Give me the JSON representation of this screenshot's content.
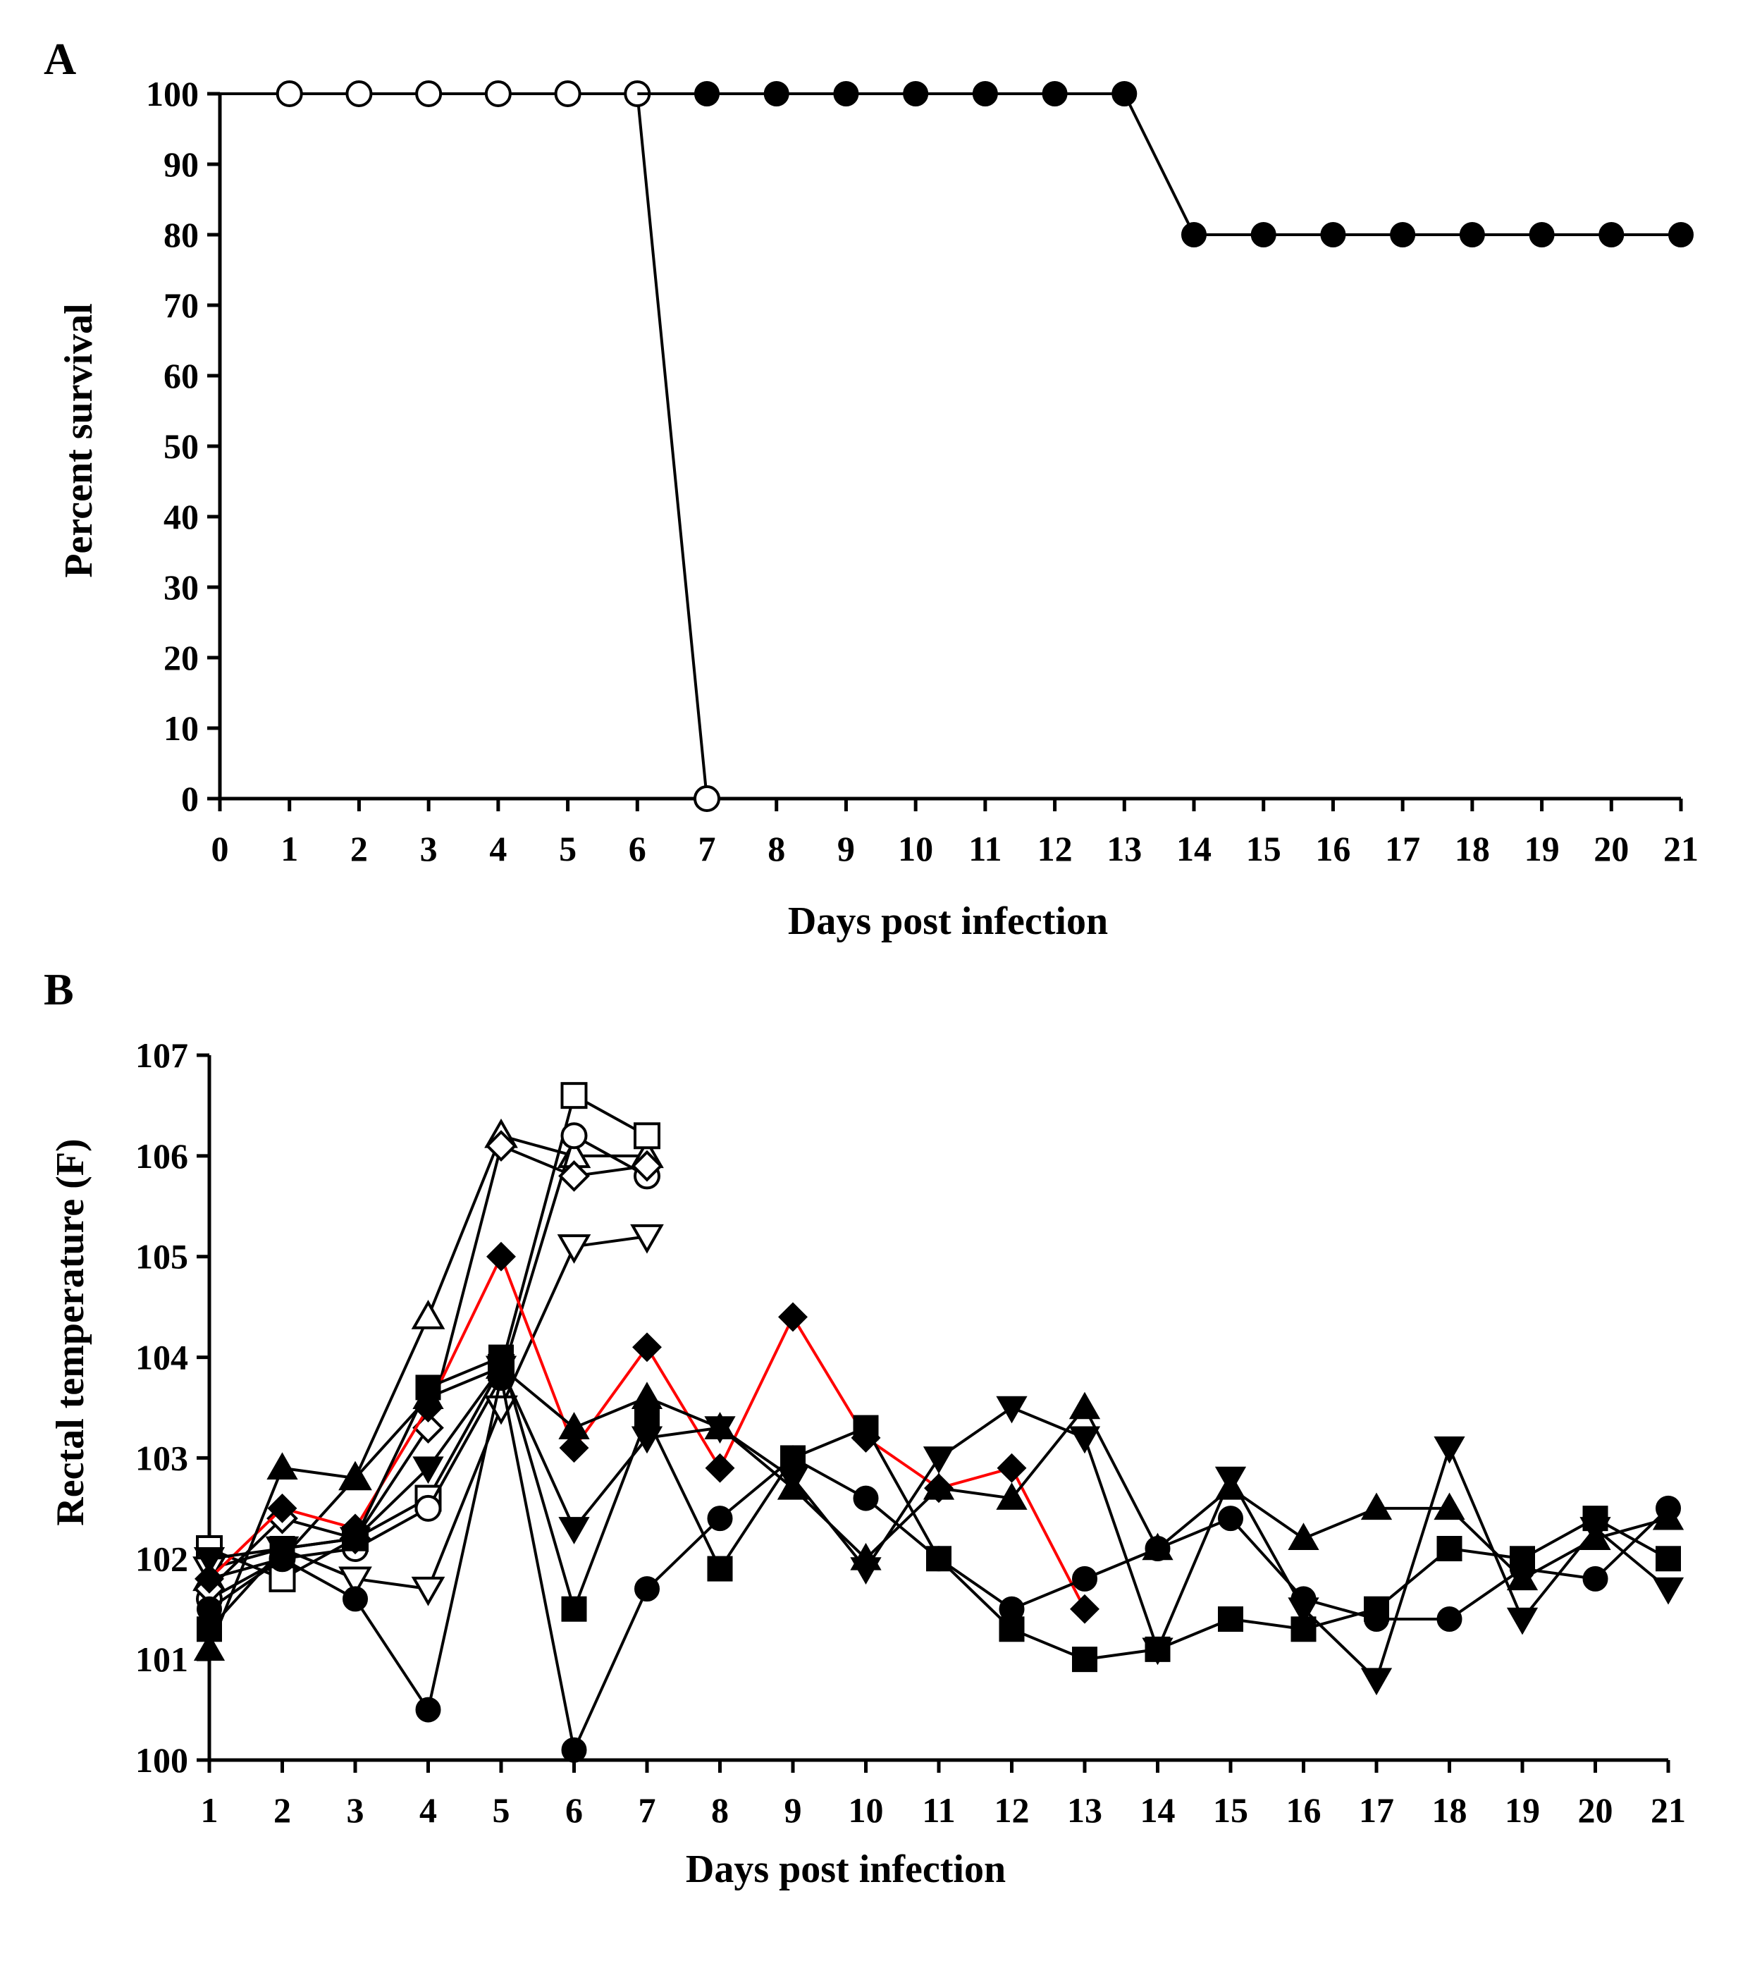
{
  "colors": {
    "ink": "#000000",
    "paper": "#ffffff",
    "highlight": "#ff0000"
  },
  "chart_data": [
    {
      "panel_label": "A",
      "type": "line",
      "title": "",
      "xlabel": "Days post infection",
      "ylabel": "Percent survival",
      "xlim": [
        0,
        21
      ],
      "ylim": [
        0,
        100
      ],
      "xticks": [
        0,
        1,
        2,
        3,
        4,
        5,
        6,
        7,
        8,
        9,
        10,
        11,
        12,
        13,
        14,
        15,
        16,
        17,
        18,
        19,
        20,
        21
      ],
      "yticks": [
        0,
        10,
        20,
        30,
        40,
        50,
        60,
        70,
        80,
        90,
        100
      ],
      "series": [
        {
          "name": "open circles",
          "marker": "circle-open",
          "color": "#000000",
          "step": true,
          "start": [
            0,
            100
          ],
          "x": [
            1,
            2,
            3,
            4,
            5,
            6,
            7
          ],
          "y": [
            100,
            100,
            100,
            100,
            100,
            100,
            0
          ]
        },
        {
          "name": "filled circles",
          "marker": "circle",
          "color": "#000000",
          "step": true,
          "start": [
            6,
            100
          ],
          "x": [
            7,
            8,
            9,
            10,
            11,
            12,
            13,
            14,
            15,
            16,
            17,
            18,
            19,
            20,
            21
          ],
          "y": [
            100,
            100,
            100,
            100,
            100,
            100,
            100,
            80,
            80,
            80,
            80,
            80,
            80,
            80,
            80
          ]
        }
      ]
    },
    {
      "panel_label": "B",
      "type": "line",
      "title": "",
      "xlabel": "Days post infection",
      "ylabel": "Rectal temperature (F)",
      "xlim": [
        1,
        21
      ],
      "ylim": [
        100,
        107
      ],
      "xticks": [
        1,
        2,
        3,
        4,
        5,
        6,
        7,
        8,
        9,
        10,
        11,
        12,
        13,
        14,
        15,
        16,
        17,
        18,
        19,
        20,
        21
      ],
      "yticks": [
        100,
        101,
        102,
        103,
        104,
        105,
        106,
        107
      ],
      "series": [
        {
          "name": "open triangle",
          "marker": "triangle-up-open",
          "color": "#000000",
          "x": [
            1,
            2,
            3,
            4,
            5,
            6,
            7
          ],
          "y": [
            101.8,
            102.0,
            102.8,
            104.4,
            106.2,
            106.0,
            106.0
          ]
        },
        {
          "name": "open square",
          "marker": "square-open",
          "color": "#000000",
          "x": [
            1,
            2,
            3,
            4,
            5,
            6,
            7
          ],
          "y": [
            102.1,
            101.8,
            102.2,
            102.6,
            103.9,
            106.6,
            106.2
          ]
        },
        {
          "name": "open circle",
          "marker": "circle-open",
          "color": "#000000",
          "x": [
            1,
            2,
            3,
            4,
            5,
            6,
            7
          ],
          "y": [
            101.6,
            102.0,
            102.1,
            102.5,
            103.8,
            106.2,
            105.8
          ]
        },
        {
          "name": "open diamond",
          "marker": "diamond-open",
          "color": "#000000",
          "x": [
            1,
            2,
            3,
            4,
            5,
            6,
            7
          ],
          "y": [
            101.7,
            102.4,
            102.2,
            103.3,
            106.1,
            105.8,
            105.9
          ]
        },
        {
          "name": "open inverted triangle",
          "marker": "triangle-down-open",
          "color": "#000000",
          "x": [
            1,
            2,
            3,
            4,
            5,
            6,
            7
          ],
          "y": [
            101.9,
            102.1,
            101.8,
            101.7,
            103.5,
            105.1,
            105.2
          ]
        },
        {
          "name": "filled diamond (red)",
          "marker": "diamond",
          "color": "#ff0000",
          "x": [
            1,
            2,
            3,
            4,
            5,
            6,
            7,
            8,
            9,
            10,
            11,
            12,
            13
          ],
          "y": [
            101.8,
            102.5,
            102.3,
            103.5,
            105.0,
            103.1,
            104.1,
            102.9,
            104.4,
            103.2,
            102.7,
            102.9,
            101.5
          ]
        },
        {
          "name": "filled triangle",
          "marker": "triangle-up",
          "color": "#000000",
          "x": [
            1,
            2,
            3,
            4,
            5,
            6,
            7,
            8,
            9,
            10,
            11,
            12,
            13,
            14,
            15,
            16,
            17,
            18,
            19,
            20,
            21
          ],
          "y": [
            101.1,
            102.9,
            102.8,
            103.6,
            103.9,
            103.3,
            103.6,
            103.3,
            102.7,
            102.0,
            102.7,
            102.6,
            103.5,
            102.1,
            102.7,
            102.2,
            102.5,
            102.5,
            101.8,
            102.2,
            102.4
          ]
        },
        {
          "name": "filled square",
          "marker": "square",
          "color": "#000000",
          "x": [
            1,
            2,
            3,
            4,
            5,
            6,
            7,
            8,
            9,
            10,
            11,
            12,
            13,
            14,
            15,
            16,
            17,
            18,
            19,
            20,
            21
          ],
          "y": [
            101.3,
            102.1,
            102.2,
            103.7,
            104.0,
            101.5,
            103.4,
            101.9,
            103.0,
            103.3,
            102.0,
            101.3,
            101.0,
            101.1,
            101.4,
            101.3,
            101.5,
            102.1,
            102.0,
            102.4,
            102.0
          ]
        },
        {
          "name": "filled circle",
          "marker": "circle",
          "color": "#000000",
          "x": [
            1,
            2,
            3,
            4,
            5,
            6,
            7,
            8,
            9,
            10,
            11,
            12,
            13,
            14,
            15,
            16,
            17,
            18,
            19,
            20,
            21
          ],
          "y": [
            101.5,
            102.0,
            101.6,
            100.5,
            103.8,
            100.1,
            101.7,
            102.4,
            103.0,
            102.6,
            102.0,
            101.5,
            101.8,
            102.1,
            102.4,
            101.6,
            101.4,
            101.4,
            101.9,
            101.8,
            102.5
          ]
        },
        {
          "name": "filled inverted triangle",
          "marker": "triangle-down",
          "color": "#000000",
          "x": [
            1,
            2,
            3,
            4,
            5,
            6,
            7,
            8,
            9,
            10,
            11,
            12,
            13,
            14,
            15,
            16,
            17,
            18,
            19,
            20,
            21
          ],
          "y": [
            102.0,
            102.1,
            102.2,
            102.9,
            103.9,
            102.3,
            103.2,
            103.3,
            102.8,
            101.9,
            103.0,
            103.5,
            103.2,
            101.1,
            102.8,
            101.5,
            100.8,
            103.1,
            101.4,
            102.3,
            101.7
          ]
        }
      ]
    }
  ]
}
